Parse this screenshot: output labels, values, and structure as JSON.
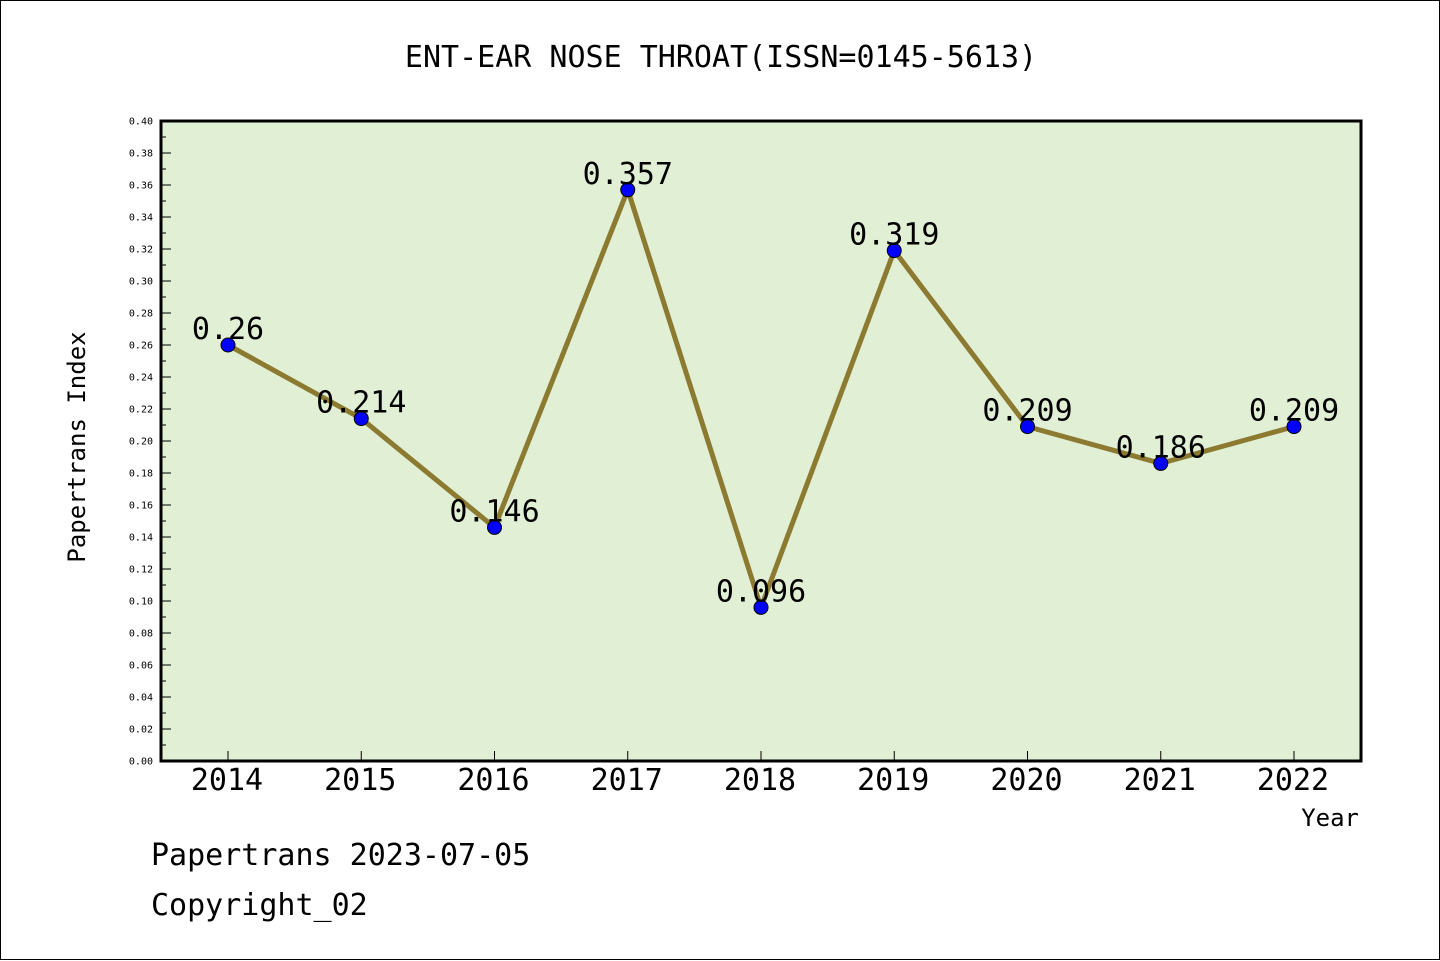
{
  "chart_data": {
    "type": "line",
    "title": "ENT-EAR NOSE THROAT(ISSN=0145-5613)",
    "xlabel": "Year",
    "ylabel": "Papertrans Index",
    "categories": [
      "2014",
      "2015",
      "2016",
      "2017",
      "2018",
      "2019",
      "2020",
      "2021",
      "2022"
    ],
    "values": [
      0.26,
      0.214,
      0.146,
      0.357,
      0.096,
      0.319,
      0.209,
      0.186,
      0.209
    ],
    "data_labels": [
      "0.26",
      "0.214",
      "0.146",
      "0.357",
      "0.096",
      "0.319",
      "0.209",
      "0.186",
      "0.209"
    ],
    "ylim": [
      0,
      0.4
    ],
    "ytick_step": 0.02,
    "grid": false,
    "colors": {
      "plot_background": "#e1efd5",
      "line": "#8b7a30",
      "marker": "#0000ff"
    }
  },
  "footer": {
    "line1": "Papertrans 2023-07-05",
    "line2": "Copyright_02"
  }
}
